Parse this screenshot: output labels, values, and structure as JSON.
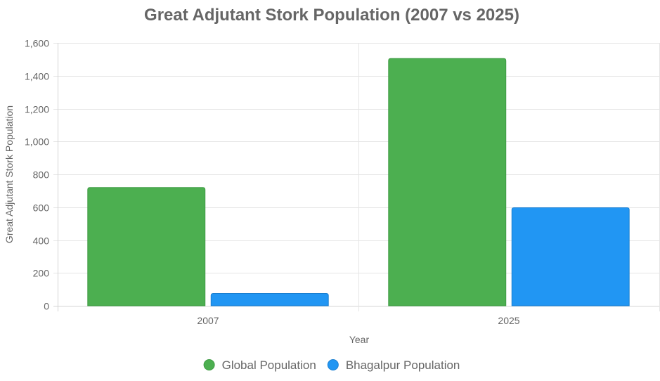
{
  "colors": {
    "global": "#4caf50",
    "global_border": "#3e9b43",
    "bhagalpur": "#2196f3",
    "bhagalpur_border": "#1a7fd1",
    "text": "#666666",
    "grid": "#e5e5e5"
  },
  "chart_data": {
    "type": "bar",
    "title": "Great Adjutant Stork Population (2007 vs 2025)",
    "xlabel": "Year",
    "ylabel": "Great Adjutant Stork Population",
    "categories": [
      "2007",
      "2025"
    ],
    "series": [
      {
        "name": "Global Population",
        "values": [
          720,
          1505
        ]
      },
      {
        "name": "Bhagalpur Population",
        "values": [
          75,
          597
        ]
      }
    ],
    "ylim": [
      0,
      1600
    ],
    "yticks": [
      0,
      200,
      400,
      600,
      800,
      1000,
      1200,
      1400,
      1600
    ],
    "ytick_labels": [
      "0",
      "200",
      "400",
      "600",
      "800",
      "1,000",
      "1,200",
      "1,400",
      "1,600"
    ],
    "grid": true,
    "legend_position": "bottom"
  }
}
